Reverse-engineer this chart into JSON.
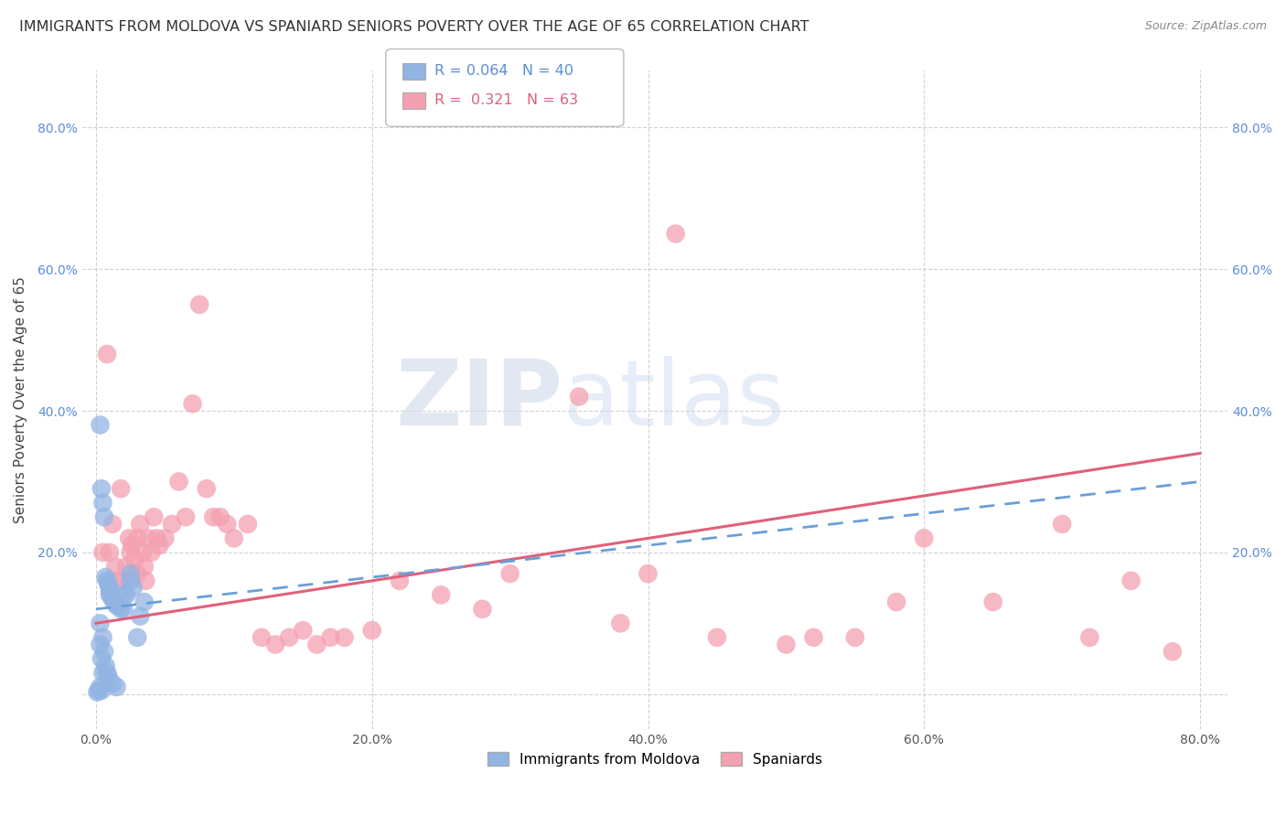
{
  "title": "IMMIGRANTS FROM MOLDOVA VS SPANIARD SENIORS POVERTY OVER THE AGE OF 65 CORRELATION CHART",
  "source": "Source: ZipAtlas.com",
  "ylabel": "Seniors Poverty Over the Age of 65",
  "R1": "0.064",
  "N1": "40",
  "R2": "0.321",
  "N2": "63",
  "blue_color": "#92b4e3",
  "pink_color": "#f4a0b0",
  "blue_line_color": "#6a9fd8",
  "pink_line_color": "#e0607a",
  "legend1_label": "Immigrants from Moldova",
  "legend2_label": "Spaniards",
  "title_fontsize": 11.5,
  "tick_fontsize": 10,
  "axis_label_fontsize": 11,
  "blue_scatter_x": [
    0.003,
    0.003,
    0.003,
    0.004,
    0.004,
    0.005,
    0.005,
    0.005,
    0.006,
    0.006,
    0.007,
    0.007,
    0.008,
    0.008,
    0.009,
    0.009,
    0.01,
    0.01,
    0.01,
    0.011,
    0.012,
    0.012,
    0.013,
    0.015,
    0.015,
    0.016,
    0.018,
    0.02,
    0.02,
    0.022,
    0.025,
    0.025,
    0.027,
    0.03,
    0.032,
    0.035,
    0.003,
    0.004,
    0.002,
    0.001
  ],
  "blue_scatter_y": [
    0.38,
    0.1,
    0.07,
    0.29,
    0.05,
    0.27,
    0.08,
    0.03,
    0.25,
    0.06,
    0.165,
    0.04,
    0.16,
    0.03,
    0.155,
    0.025,
    0.15,
    0.145,
    0.14,
    0.14,
    0.135,
    0.015,
    0.13,
    0.125,
    0.01,
    0.125,
    0.12,
    0.12,
    0.14,
    0.14,
    0.16,
    0.17,
    0.15,
    0.08,
    0.11,
    0.13,
    0.01,
    0.005,
    0.005,
    0.003
  ],
  "pink_scatter_x": [
    0.005,
    0.008,
    0.01,
    0.012,
    0.014,
    0.016,
    0.018,
    0.02,
    0.022,
    0.024,
    0.025,
    0.026,
    0.028,
    0.03,
    0.03,
    0.032,
    0.034,
    0.035,
    0.036,
    0.038,
    0.04,
    0.042,
    0.044,
    0.046,
    0.05,
    0.055,
    0.06,
    0.065,
    0.07,
    0.075,
    0.08,
    0.085,
    0.09,
    0.095,
    0.1,
    0.11,
    0.12,
    0.13,
    0.14,
    0.15,
    0.16,
    0.17,
    0.18,
    0.2,
    0.22,
    0.25,
    0.28,
    0.3,
    0.35,
    0.4,
    0.45,
    0.5,
    0.52,
    0.55,
    0.58,
    0.6,
    0.65,
    0.7,
    0.72,
    0.75,
    0.78,
    0.38,
    0.42
  ],
  "pink_scatter_y": [
    0.2,
    0.48,
    0.2,
    0.24,
    0.18,
    0.16,
    0.29,
    0.16,
    0.18,
    0.22,
    0.2,
    0.21,
    0.19,
    0.17,
    0.22,
    0.24,
    0.2,
    0.18,
    0.16,
    0.22,
    0.2,
    0.25,
    0.22,
    0.21,
    0.22,
    0.24,
    0.3,
    0.25,
    0.41,
    0.55,
    0.29,
    0.25,
    0.25,
    0.24,
    0.22,
    0.24,
    0.08,
    0.07,
    0.08,
    0.09,
    0.07,
    0.08,
    0.08,
    0.09,
    0.16,
    0.14,
    0.12,
    0.17,
    0.42,
    0.17,
    0.08,
    0.07,
    0.08,
    0.08,
    0.13,
    0.22,
    0.13,
    0.24,
    0.08,
    0.16,
    0.06,
    0.1,
    0.65
  ],
  "watermark_zip": "ZIP",
  "watermark_atlas": "atlas",
  "background_color": "#ffffff"
}
